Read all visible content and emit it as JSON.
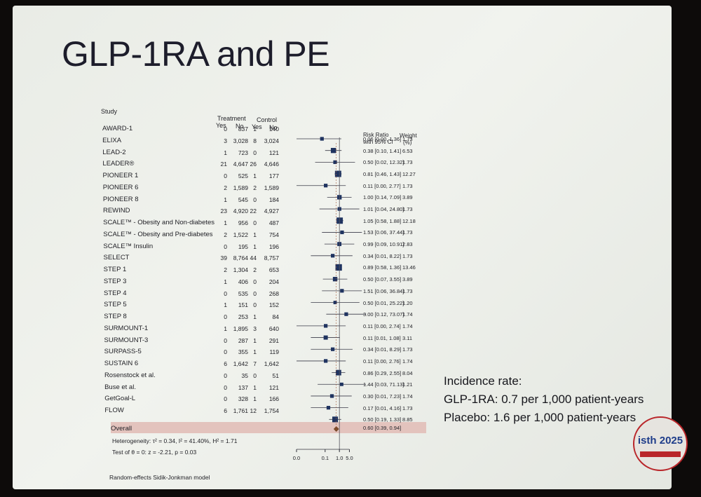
{
  "slide": {
    "title": "GLP-1RA and PE",
    "incidence": {
      "heading": "Incidence rate:",
      "glp1": "GLP-1RA: 0.7 per 1,000 patient-years",
      "placebo": "Placebo: 1.6 per 1,000 patient-years"
    },
    "logo_text": "isth 2025"
  },
  "chart_data": {
    "type": "forest",
    "headers": {
      "study": "Study",
      "treatment": "Treatment",
      "control": "Control",
      "yes": "Yes",
      "no": "No",
      "rr": "Risk Ratio",
      "rr2": "with 95% CI",
      "weight": "Weight",
      "weight2": "(%)"
    },
    "studies": [
      {
        "name": "AWARD-1",
        "t_yes": "0",
        "t_no": "837",
        "c_yes": "1",
        "c_no": "140",
        "rr": 0.06,
        "lo": 0.0,
        "hi": 1.36,
        "ci_text": "0.06 [0.00, 1.36]",
        "weight": "1.73"
      },
      {
        "name": "ELIXA",
        "t_yes": "3",
        "t_no": "3,028",
        "c_yes": "8",
        "c_no": "3,024",
        "rr": 0.38,
        "lo": 0.1,
        "hi": 1.41,
        "ci_text": "0.38 [0.10, 1.41]",
        "weight": "6.53"
      },
      {
        "name": "LEAD-2",
        "t_yes": "1",
        "t_no": "723",
        "c_yes": "0",
        "c_no": "121",
        "rr": 0.5,
        "lo": 0.02,
        "hi": 12.32,
        "ci_text": "0.50 [0.02, 12.32]",
        "weight": "1.73"
      },
      {
        "name": "LEADER®",
        "t_yes": "21",
        "t_no": "4,647",
        "c_yes": "26",
        "c_no": "4,646",
        "rr": 0.81,
        "lo": 0.46,
        "hi": 1.43,
        "ci_text": "0.81 [0.46, 1.43]",
        "weight": "12.27"
      },
      {
        "name": "PIONEER 1",
        "t_yes": "0",
        "t_no": "525",
        "c_yes": "1",
        "c_no": "177",
        "rr": 0.11,
        "lo": 0.0,
        "hi": 2.77,
        "ci_text": "0.11 [0.00, 2.77]",
        "weight": "1.73"
      },
      {
        "name": "PIONEER 6",
        "t_yes": "2",
        "t_no": "1,589",
        "c_yes": "2",
        "c_no": "1,589",
        "rr": 1.0,
        "lo": 0.14,
        "hi": 7.09,
        "ci_text": "1.00 [0.14, 7.09]",
        "weight": "3.89"
      },
      {
        "name": "PIONEER 8",
        "t_yes": "1",
        "t_no": "545",
        "c_yes": "0",
        "c_no": "184",
        "rr": 1.01,
        "lo": 0.04,
        "hi": 24.8,
        "ci_text": "1.01 [0.04, 24.80]",
        "weight": "1.73"
      },
      {
        "name": "REWIND",
        "t_yes": "23",
        "t_no": "4,920",
        "c_yes": "22",
        "c_no": "4,927",
        "rr": 1.05,
        "lo": 0.58,
        "hi": 1.88,
        "ci_text": "1.05 [0.58, 1.88]",
        "weight": "12.18"
      },
      {
        "name": "SCALE™ - Obesity and Non-diabetes",
        "t_yes": "1",
        "t_no": "956",
        "c_yes": "0",
        "c_no": "487",
        "rr": 1.53,
        "lo": 0.06,
        "hi": 37.44,
        "ci_text": "1.53 [0.06, 37.44]",
        "weight": "1.73"
      },
      {
        "name": "SCALE™ - Obesity and Pre-diabetes",
        "t_yes": "2",
        "t_no": "1,522",
        "c_yes": "1",
        "c_no": "754",
        "rr": 0.99,
        "lo": 0.09,
        "hi": 10.91,
        "ci_text": "0.99 [0.09, 10.91]",
        "weight": "2.83"
      },
      {
        "name": "SCALE™ Insulin",
        "t_yes": "0",
        "t_no": "195",
        "c_yes": "1",
        "c_no": "196",
        "rr": 0.34,
        "lo": 0.01,
        "hi": 8.22,
        "ci_text": "0.34 [0.01, 8.22]",
        "weight": "1.73"
      },
      {
        "name": "SELECT",
        "t_yes": "39",
        "t_no": "8,764",
        "c_yes": "44",
        "c_no": "8,757",
        "rr": 0.89,
        "lo": 0.58,
        "hi": 1.36,
        "ci_text": "0.89 [0.58, 1.36]",
        "weight": "13.46"
      },
      {
        "name": "STEP 1",
        "t_yes": "2",
        "t_no": "1,304",
        "c_yes": "2",
        "c_no": "653",
        "rr": 0.5,
        "lo": 0.07,
        "hi": 3.55,
        "ci_text": "0.50 [0.07, 3.55]",
        "weight": "3.89"
      },
      {
        "name": "STEP 3",
        "t_yes": "1",
        "t_no": "406",
        "c_yes": "0",
        "c_no": "204",
        "rr": 1.51,
        "lo": 0.06,
        "hi": 36.84,
        "ci_text": "1.51 [0.06, 36.84]",
        "weight": "1.73"
      },
      {
        "name": "STEP 4",
        "t_yes": "0",
        "t_no": "535",
        "c_yes": "0",
        "c_no": "268",
        "rr": 0.5,
        "lo": 0.01,
        "hi": 25.22,
        "ci_text": "0.50 [0.01, 25.22]",
        "weight": "1.20"
      },
      {
        "name": "STEP 5",
        "t_yes": "1",
        "t_no": "151",
        "c_yes": "0",
        "c_no": "152",
        "rr": 3.0,
        "lo": 0.12,
        "hi": 73.07,
        "ci_text": "3.00 [0.12, 73.07]",
        "weight": "1.74"
      },
      {
        "name": "STEP 8",
        "t_yes": "0",
        "t_no": "253",
        "c_yes": "1",
        "c_no": "84",
        "rr": 0.11,
        "lo": 0.0,
        "hi": 2.74,
        "ci_text": "0.11 [0.00, 2.74]",
        "weight": "1.74"
      },
      {
        "name": "SURMOUNT-1",
        "t_yes": "1",
        "t_no": "1,895",
        "c_yes": "3",
        "c_no": "640",
        "rr": 0.11,
        "lo": 0.01,
        "hi": 1.08,
        "ci_text": "0.11 [0.01, 1.08]",
        "weight": "3.11"
      },
      {
        "name": "SURMOUNT-3",
        "t_yes": "0",
        "t_no": "287",
        "c_yes": "1",
        "c_no": "291",
        "rr": 0.34,
        "lo": 0.01,
        "hi": 8.29,
        "ci_text": "0.34 [0.01, 8.29]",
        "weight": "1.73"
      },
      {
        "name": "SURPASS-5",
        "t_yes": "0",
        "t_no": "355",
        "c_yes": "1",
        "c_no": "119",
        "rr": 0.11,
        "lo": 0.0,
        "hi": 2.76,
        "ci_text": "0.11 [0.00, 2.76]",
        "weight": "1.74"
      },
      {
        "name": "SUSTAIN 6",
        "t_yes": "6",
        "t_no": "1,642",
        "c_yes": "7",
        "c_no": "1,642",
        "rr": 0.86,
        "lo": 0.29,
        "hi": 2.55,
        "ci_text": "0.86 [0.29, 2.55]",
        "weight": "8.04"
      },
      {
        "name": "Rosenstock et al.",
        "t_yes": "0",
        "t_no": "35",
        "c_yes": "0",
        "c_no": "51",
        "rr": 1.44,
        "lo": 0.03,
        "hi": 71.13,
        "ci_text": "1.44 [0.03, 71.13]",
        "weight": "1.21"
      },
      {
        "name": "Buse et al.",
        "t_yes": "0",
        "t_no": "137",
        "c_yes": "1",
        "c_no": "121",
        "rr": 0.3,
        "lo": 0.01,
        "hi": 7.23,
        "ci_text": "0.30 [0.01, 7.23]",
        "weight": "1.74"
      },
      {
        "name": "GetGoal-L",
        "t_yes": "0",
        "t_no": "328",
        "c_yes": "1",
        "c_no": "166",
        "rr": 0.17,
        "lo": 0.01,
        "hi": 4.16,
        "ci_text": "0.17 [0.01, 4.16]",
        "weight": "1.73"
      },
      {
        "name": "FLOW",
        "t_yes": "6",
        "t_no": "1,761",
        "c_yes": "12",
        "c_no": "1,754",
        "rr": 0.5,
        "lo": 0.19,
        "hi": 1.33,
        "ci_text": "0.50 [0.19, 1.33]",
        "weight": "8.85"
      }
    ],
    "overall": {
      "name": "Overall",
      "rr": 0.6,
      "lo": 0.39,
      "hi": 0.94,
      "ci_text": "0.60 [0.39, 0.94]"
    },
    "heterogeneity": "Heterogeneity: τ² = 0.34, I² = 41.40%, H² = 1.71",
    "test": "Test of θ = 0: z = -2.21, p = 0.03",
    "model": "Random-effects Sidik-Jonkman model",
    "x_scale": "log",
    "x_ticks": [
      "0.0",
      "0.1",
      "1.0",
      "5.0"
    ],
    "x_tick_values": [
      0.001,
      0.1,
      1.0,
      5.0
    ],
    "xlim": [
      0.001,
      80
    ]
  }
}
